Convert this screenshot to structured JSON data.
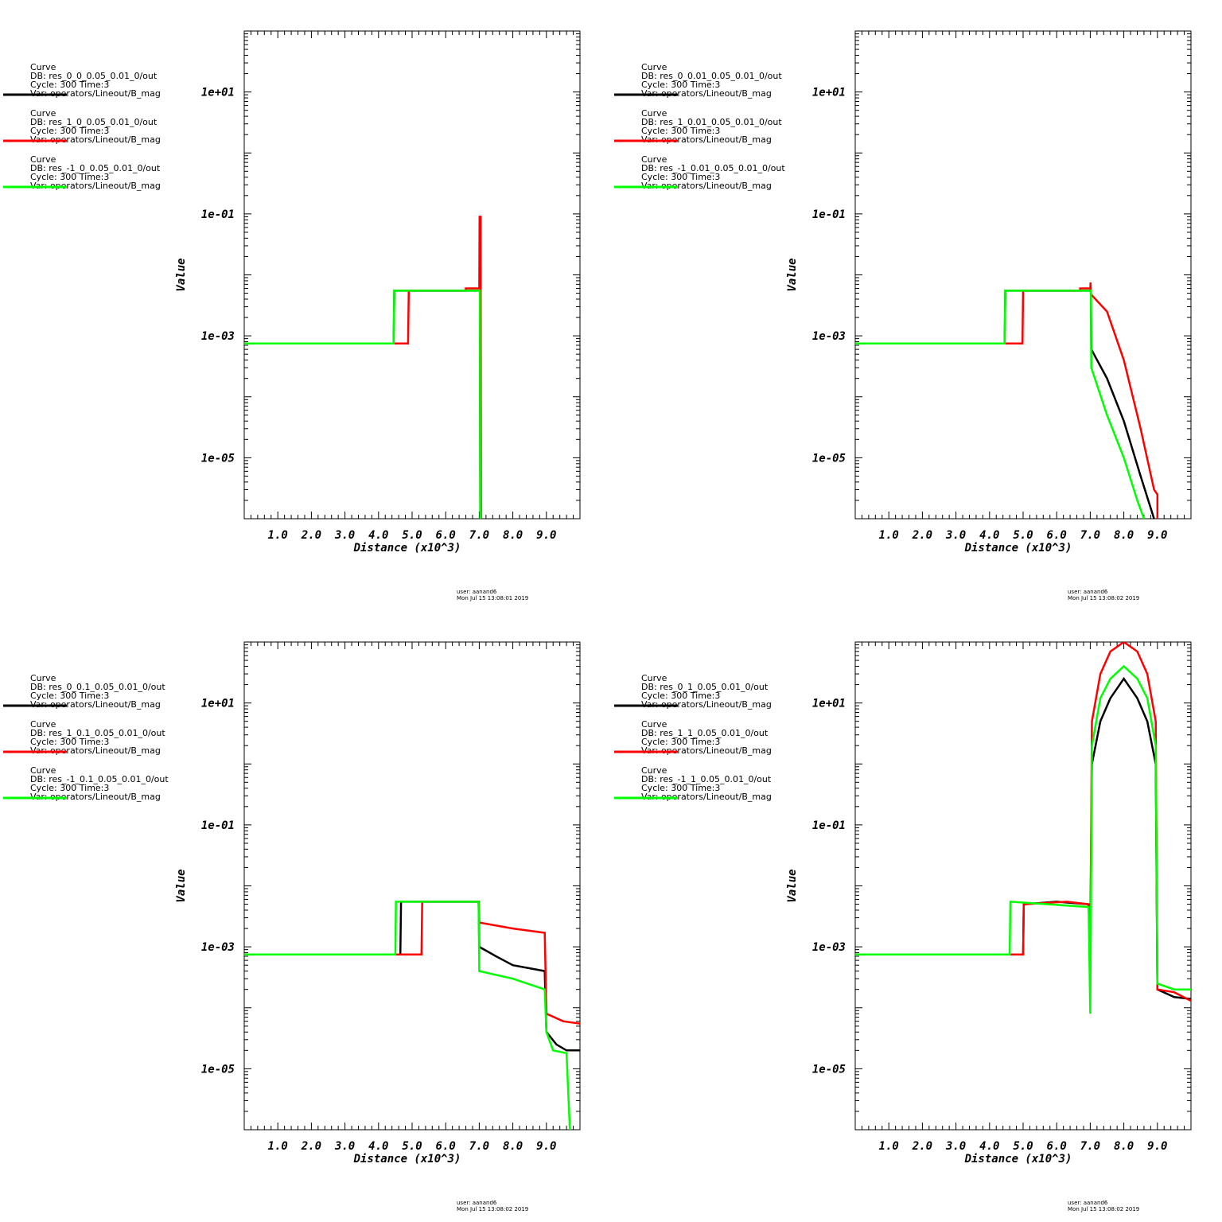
{
  "chart_data": [
    {
      "type": "line",
      "xlabel": "Distance (x10^3)",
      "ylabel": "Value",
      "xlim": [
        0,
        10
      ],
      "ylim": [
        1e-06,
        100
      ],
      "log_y": true,
      "x_tick_labels": [
        "1.0",
        "2.0",
        "3.0",
        "4.0",
        "5.0",
        "6.0",
        "7.0",
        "8.0",
        "9.0"
      ],
      "y_tick_labels": [
        "1e+01",
        "1e-01",
        "1e-03",
        "1e-05"
      ],
      "grid": false,
      "legend_position": "left",
      "legend": [
        {
          "lines": [
            "Curve",
            "DB: res_0_0_0.05_0.01_0/out",
            "Cycle: 300     Time:3",
            "Var: operators/Lineout/B_mag"
          ],
          "color": "#000000"
        },
        {
          "lines": [
            "Curve",
            "DB: res_1_0_0.05_0.01_0/out",
            "Cycle: 300     Time:3",
            "Var: operators/Lineout/B_mag"
          ],
          "color": "#ff0000"
        },
        {
          "lines": [
            "Curve",
            "DB: res_-1_0_0.05_0.01_0/out",
            "Cycle: 300     Time:3",
            "Var: operators/Lineout/B_mag"
          ],
          "color": "#00ff00"
        }
      ],
      "stamp": [
        "user: aanand6",
        "Mon Jul 15 13:08:01 2019"
      ],
      "series": [
        {
          "color": "#000000",
          "points": [
            [
              0,
              0.00075
            ],
            [
              4.45,
              0.00075
            ],
            [
              4.47,
              0.0055
            ],
            [
              7.02,
              0.0055
            ],
            [
              7.03,
              1e-06
            ]
          ]
        },
        {
          "color": "#ff0000",
          "points": [
            [
              0,
              0.00075
            ],
            [
              4.88,
              0.00075
            ],
            [
              4.9,
              0.0055
            ],
            [
              6.6,
              0.0055
            ],
            [
              6.6,
              0.006
            ],
            [
              7.0,
              0.006
            ],
            [
              7.01,
              0.09
            ],
            [
              7.04,
              0.09
            ],
            [
              7.05,
              1e-06
            ]
          ]
        },
        {
          "color": "#00ff00",
          "points": [
            [
              0,
              0.00075
            ],
            [
              4.45,
              0.00075
            ],
            [
              4.47,
              0.0055
            ],
            [
              7.02,
              0.0055
            ],
            [
              7.03,
              1e-06
            ]
          ]
        }
      ]
    },
    {
      "type": "line",
      "xlabel": "Distance (x10^3)",
      "ylabel": "Value",
      "xlim": [
        0,
        10
      ],
      "ylim": [
        1e-06,
        100
      ],
      "log_y": true,
      "x_tick_labels": [
        "1.0",
        "2.0",
        "3.0",
        "4.0",
        "5.0",
        "6.0",
        "7.0",
        "8.0",
        "9.0"
      ],
      "y_tick_labels": [
        "1e+01",
        "1e-01",
        "1e-03",
        "1e-05"
      ],
      "grid": false,
      "legend_position": "left",
      "legend": [
        {
          "lines": [
            "Curve",
            "DB: res_0_0.01_0.05_0.01_0/out",
            "Cycle: 300     Time:3",
            "Var: operators/Lineout/B_mag"
          ],
          "color": "#000000"
        },
        {
          "lines": [
            "Curve",
            "DB: res_1_0.01_0.05_0.01_0/out",
            "Cycle: 300     Time:3",
            "Var: operators/Lineout/B_mag"
          ],
          "color": "#ff0000"
        },
        {
          "lines": [
            "Curve",
            "DB: res_-1_0.01_0.05_0.01_0/out",
            "Cycle: 300     Time:3",
            "Var: operators/Lineout/B_mag"
          ],
          "color": "#00ff00"
        }
      ],
      "stamp": [
        "user: aanand6",
        "Mon Jul 15 13:08:02 2019"
      ],
      "series": [
        {
          "color": "#000000",
          "points": [
            [
              0,
              0.00075
            ],
            [
              4.45,
              0.00075
            ],
            [
              4.47,
              0.0055
            ],
            [
              7.02,
              0.0055
            ],
            [
              7.03,
              0.0006
            ],
            [
              7.5,
              0.0002
            ],
            [
              8.0,
              4e-05
            ],
            [
              8.5,
              5e-06
            ],
            [
              8.9,
              1e-06
            ]
          ]
        },
        {
          "color": "#ff0000",
          "points": [
            [
              0,
              0.00075
            ],
            [
              4.98,
              0.00075
            ],
            [
              5.0,
              0.0055
            ],
            [
              6.7,
              0.0055
            ],
            [
              6.7,
              0.006
            ],
            [
              7.0,
              0.006
            ],
            [
              7.01,
              0.0075
            ],
            [
              7.02,
              0.0048
            ],
            [
              7.5,
              0.0025
            ],
            [
              8.0,
              0.0004
            ],
            [
              8.5,
              3e-05
            ],
            [
              8.9,
              3e-06
            ],
            [
              9.0,
              2.5e-06
            ],
            [
              9.0,
              1e-06
            ]
          ]
        },
        {
          "color": "#00ff00",
          "points": [
            [
              0,
              0.00075
            ],
            [
              4.45,
              0.00075
            ],
            [
              4.47,
              0.0055
            ],
            [
              7.02,
              0.0055
            ],
            [
              7.03,
              0.0003
            ],
            [
              7.5,
              5e-05
            ],
            [
              8.0,
              1e-05
            ],
            [
              8.4,
              2e-06
            ],
            [
              8.6,
              1e-06
            ]
          ]
        }
      ]
    },
    {
      "type": "line",
      "xlabel": "Distance (x10^3)",
      "ylabel": "Value",
      "xlim": [
        0,
        10
      ],
      "ylim": [
        1e-06,
        100
      ],
      "log_y": true,
      "x_tick_labels": [
        "1.0",
        "2.0",
        "3.0",
        "4.0",
        "5.0",
        "6.0",
        "7.0",
        "8.0",
        "9.0"
      ],
      "y_tick_labels": [
        "1e+01",
        "1e-01",
        "1e-03",
        "1e-05"
      ],
      "grid": false,
      "legend_position": "left",
      "legend": [
        {
          "lines": [
            "Curve",
            "DB: res_0_0.1_0.05_0.01_0/out",
            "Cycle: 300     Time:3",
            "Var: operators/Lineout/B_mag"
          ],
          "color": "#000000"
        },
        {
          "lines": [
            "Curve",
            "DB: res_1_0.1_0.05_0.01_0/out",
            "Cycle: 300     Time:3",
            "Var: operators/Lineout/B_mag"
          ],
          "color": "#ff0000"
        },
        {
          "lines": [
            "Curve",
            "DB: res_-1_0.1_0.05_0.01_0/out",
            "Cycle: 300     Time:3",
            "Var: operators/Lineout/B_mag"
          ],
          "color": "#00ff00"
        }
      ],
      "stamp": [
        "user: aanand6",
        "Mon Jul 15 13:08:02 2019"
      ],
      "series": [
        {
          "color": "#000000",
          "points": [
            [
              0,
              0.00075
            ],
            [
              4.65,
              0.00075
            ],
            [
              4.67,
              0.0055
            ],
            [
              6.98,
              0.0055
            ],
            [
              7.0,
              0.001
            ],
            [
              7.5,
              0.0007
            ],
            [
              8.0,
              0.0005
            ],
            [
              8.95,
              0.0004
            ],
            [
              9.0,
              4e-05
            ],
            [
              9.3,
              2.5e-05
            ],
            [
              9.6,
              2e-05
            ],
            [
              10,
              2e-05
            ]
          ]
        },
        {
          "color": "#ff0000",
          "points": [
            [
              0,
              0.00075
            ],
            [
              5.28,
              0.00075
            ],
            [
              5.3,
              0.0055
            ],
            [
              6.98,
              0.0055
            ],
            [
              7.0,
              0.0025
            ],
            [
              8.0,
              0.002
            ],
            [
              8.95,
              0.0017
            ],
            [
              9.0,
              8e-05
            ],
            [
              9.5,
              6e-05
            ],
            [
              10,
              5.5e-05
            ]
          ]
        },
        {
          "color": "#00ff00",
          "points": [
            [
              0,
              0.00075
            ],
            [
              4.5,
              0.00075
            ],
            [
              4.52,
              0.0055
            ],
            [
              6.98,
              0.0055
            ],
            [
              7.0,
              0.0004
            ],
            [
              8.0,
              0.0003
            ],
            [
              8.95,
              0.0002
            ],
            [
              9.0,
              4e-05
            ],
            [
              9.2,
              2e-05
            ],
            [
              9.6,
              1.8e-05
            ],
            [
              9.7,
              1e-06
            ]
          ]
        }
      ]
    },
    {
      "type": "line",
      "xlabel": "Distance (x10^3)",
      "ylabel": "Value",
      "xlim": [
        0,
        10
      ],
      "ylim": [
        1e-06,
        100
      ],
      "log_y": true,
      "x_tick_labels": [
        "1.0",
        "2.0",
        "3.0",
        "4.0",
        "5.0",
        "6.0",
        "7.0",
        "8.0",
        "9.0"
      ],
      "y_tick_labels": [
        "1e+01",
        "1e-01",
        "1e-03",
        "1e-05"
      ],
      "grid": false,
      "legend_position": "left",
      "legend": [
        {
          "lines": [
            "Curve",
            "DB: res_0_1_0.05_0.01_0/out",
            "Cycle: 300     Time:3",
            "Var: operators/Lineout/B_mag"
          ],
          "color": "#000000"
        },
        {
          "lines": [
            "Curve",
            "DB: res_1_1_0.05_0.01_0/out",
            "Cycle: 300     Time:3",
            "Var: operators/Lineout/B_mag"
          ],
          "color": "#ff0000"
        },
        {
          "lines": [
            "Curve",
            "DB: res_-1_1_0.05_0.01_0/out",
            "Cycle: 300     Time:3",
            "Var: operators/Lineout/B_mag"
          ],
          "color": "#00ff00"
        }
      ],
      "stamp": [
        "user: aanand6",
        "Mon Jul 15 13:08:02 2019"
      ],
      "series": [
        {
          "color": "#000000",
          "points": [
            [
              0,
              0.00075
            ],
            [
              5.0,
              0.00075
            ],
            [
              5.02,
              0.005
            ],
            [
              6.0,
              0.0055
            ],
            [
              6.95,
              0.005
            ],
            [
              7.0,
              0.001
            ],
            [
              7.05,
              1
            ],
            [
              7.3,
              5
            ],
            [
              7.6,
              12
            ],
            [
              8.0,
              25
            ],
            [
              8.4,
              12
            ],
            [
              8.7,
              5
            ],
            [
              8.95,
              1
            ],
            [
              9.0,
              0.0002
            ],
            [
              9.5,
              0.00015
            ],
            [
              10,
              0.00014
            ]
          ]
        },
        {
          "color": "#ff0000",
          "points": [
            [
              0,
              0.00075
            ],
            [
              5.0,
              0.00075
            ],
            [
              5.02,
              0.005
            ],
            [
              6.3,
              0.0055
            ],
            [
              6.95,
              0.005
            ],
            [
              7.0,
              0.001
            ],
            [
              7.05,
              5
            ],
            [
              7.3,
              30
            ],
            [
              7.6,
              70
            ],
            [
              8.0,
              100
            ],
            [
              8.4,
              70
            ],
            [
              8.7,
              30
            ],
            [
              8.95,
              5
            ],
            [
              9.0,
              0.0002
            ],
            [
              9.5,
              0.00018
            ],
            [
              10,
              0.00013
            ]
          ]
        },
        {
          "color": "#00ff00",
          "points": [
            [
              0,
              0.00075
            ],
            [
              4.6,
              0.00075
            ],
            [
              4.62,
              0.0055
            ],
            [
              6.95,
              0.0045
            ],
            [
              7.0,
              8e-05
            ],
            [
              7.05,
              2
            ],
            [
              7.3,
              12
            ],
            [
              7.6,
              25
            ],
            [
              8.0,
              40
            ],
            [
              8.4,
              25
            ],
            [
              8.7,
              12
            ],
            [
              8.95,
              2
            ],
            [
              9.0,
              0.00025
            ],
            [
              9.5,
              0.0002
            ],
            [
              10,
              0.0002
            ]
          ]
        }
      ]
    }
  ]
}
